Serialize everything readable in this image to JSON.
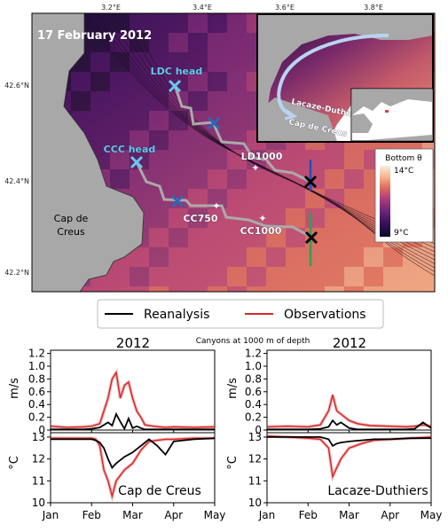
{
  "map": {
    "date_label": "17 February 2012",
    "lon_ticks": [
      "3.2°E",
      "3.4°E",
      "3.6°E",
      "3.8°E"
    ],
    "lat_ticks": [
      "42.6°N",
      "42.4°N",
      "42.2°N"
    ],
    "land_label": "Cap de Creus",
    "colorbar": {
      "title": "Bottom θ",
      "max_label": "14°C",
      "min_label": "9°C",
      "colors": [
        "#0d0a2a",
        "#3a1060",
        "#7a2a7a",
        "#b5407a",
        "#e0705a",
        "#f5b890",
        "#f8ece0"
      ]
    },
    "points": [
      {
        "label": "LDC head",
        "kind": "head"
      },
      {
        "label": "CCC head",
        "kind": "head"
      },
      {
        "label": "LD1000",
        "kind": "star"
      },
      {
        "label": "CC750",
        "kind": "star"
      },
      {
        "label": "CC1000",
        "kind": "star"
      }
    ],
    "inset": {
      "labels": [
        "Lacaze-Duthiers",
        "Cap de Creus"
      ]
    }
  },
  "legend": {
    "entries": [
      {
        "name": "Reanalysis",
        "color": "#000000"
      },
      {
        "name": "Observations",
        "color": "#d62728"
      }
    ]
  },
  "panels": {
    "left_title": "2012",
    "right_title": "2012",
    "center_note": "Canyons at 1000 m of depth",
    "left_label": "Cap de Creus",
    "right_label": "Lacaze-Duthiers",
    "speed_ylabel": "m/s",
    "temp_ylabel": "°C"
  },
  "chart_data": [
    {
      "type": "line",
      "title": "2012",
      "ylabel": "m/s",
      "xlim": [
        "Jan",
        "May"
      ],
      "xticks": [
        "Jan",
        "Feb",
        "Mar",
        "Apr",
        "May"
      ],
      "ylim": [
        0,
        1.25
      ],
      "yticks": [
        "0",
        "0.2",
        "0.4",
        "0.6",
        "0.8",
        "1.0",
        "1.2"
      ],
      "x": [
        0.0,
        0.4,
        0.8,
        1.0,
        1.2,
        1.4,
        1.5,
        1.6,
        1.7,
        1.8,
        1.9,
        2.0,
        2.1,
        2.2,
        2.3,
        2.5,
        2.8,
        3.0,
        3.5,
        4.0
      ],
      "series": [
        {
          "name": "Reanalysis",
          "values": [
            0.01,
            0.01,
            0.01,
            0.02,
            0.04,
            0.12,
            0.07,
            0.25,
            0.13,
            0.02,
            0.18,
            0.03,
            0.06,
            0.03,
            0.01,
            0.01,
            0.01,
            0.01,
            0.01,
            0.01
          ]
        },
        {
          "name": "Observations",
          "values": [
            0.06,
            0.04,
            0.05,
            0.06,
            0.1,
            0.5,
            0.8,
            0.9,
            0.5,
            0.7,
            0.75,
            0.5,
            0.3,
            0.2,
            0.08,
            0.06,
            0.04,
            0.05,
            0.04,
            0.05
          ]
        }
      ]
    },
    {
      "type": "line",
      "ylabel": "°C",
      "xlim": [
        "Jan",
        "May"
      ],
      "xticks": [
        "Jan",
        "Feb",
        "Mar",
        "Apr",
        "May"
      ],
      "ylim": [
        10,
        13.2
      ],
      "yticks": [
        "10",
        "11",
        "12",
        "13"
      ],
      "x": [
        0.0,
        0.8,
        1.0,
        1.1,
        1.2,
        1.3,
        1.4,
        1.5,
        1.6,
        1.8,
        2.0,
        2.2,
        2.4,
        2.6,
        2.8,
        3.0,
        3.5,
        4.0
      ],
      "series": [
        {
          "name": "Reanalysis",
          "values": [
            12.9,
            12.9,
            12.9,
            12.85,
            12.75,
            12.5,
            12.0,
            11.6,
            11.8,
            12.1,
            12.3,
            12.6,
            12.9,
            12.6,
            12.2,
            12.8,
            12.9,
            12.95
          ]
        },
        {
          "name": "Observations",
          "values": [
            12.95,
            12.95,
            12.95,
            12.9,
            12.6,
            11.5,
            11.0,
            10.3,
            11.0,
            11.5,
            11.8,
            12.4,
            12.8,
            12.85,
            12.9,
            12.9,
            12.95,
            12.95
          ]
        }
      ]
    },
    {
      "type": "line",
      "title": "2012",
      "ylabel": "m/s",
      "xlim": [
        "Jan",
        "May"
      ],
      "xticks": [
        "Jan",
        "Feb",
        "Mar",
        "Apr",
        "May"
      ],
      "ylim": [
        0,
        1.25
      ],
      "yticks": [
        "0",
        "0.2",
        "0.4",
        "0.6",
        "0.8",
        "1.0",
        "1.2"
      ],
      "x": [
        0.0,
        0.5,
        1.0,
        1.3,
        1.5,
        1.6,
        1.7,
        1.8,
        2.0,
        2.2,
        2.5,
        3.0,
        3.4,
        3.6,
        3.8,
        4.0
      ],
      "series": [
        {
          "name": "Reanalysis",
          "values": [
            0.01,
            0.01,
            0.01,
            0.02,
            0.05,
            0.15,
            0.08,
            0.12,
            0.03,
            0.01,
            0.01,
            0.01,
            0.01,
            0.02,
            0.12,
            0.03
          ]
        },
        {
          "name": "Observations",
          "values": [
            0.05,
            0.06,
            0.05,
            0.08,
            0.3,
            0.55,
            0.3,
            0.25,
            0.15,
            0.1,
            0.07,
            0.06,
            0.05,
            0.06,
            0.08,
            0.06
          ]
        }
      ]
    },
    {
      "type": "line",
      "ylabel": "°C",
      "xlim": [
        "Jan",
        "May"
      ],
      "xticks": [
        "Jan",
        "Feb",
        "Mar",
        "Apr",
        "May"
      ],
      "ylim": [
        10,
        13.2
      ],
      "yticks": [
        "10",
        "11",
        "12",
        "13"
      ],
      "x": [
        0.0,
        0.5,
        1.0,
        1.3,
        1.5,
        1.6,
        1.7,
        1.8,
        2.0,
        2.3,
        2.6,
        3.0,
        3.5,
        4.0
      ],
      "series": [
        {
          "name": "Reanalysis",
          "values": [
            13.0,
            13.0,
            13.0,
            13.0,
            12.9,
            12.6,
            12.7,
            12.75,
            12.8,
            12.85,
            12.9,
            12.9,
            12.95,
            12.95
          ]
        },
        {
          "name": "Observations",
          "values": [
            13.05,
            13.0,
            12.95,
            12.9,
            12.5,
            11.2,
            11.6,
            12.0,
            12.5,
            12.7,
            12.85,
            12.9,
            12.95,
            13.0
          ]
        }
      ]
    }
  ]
}
